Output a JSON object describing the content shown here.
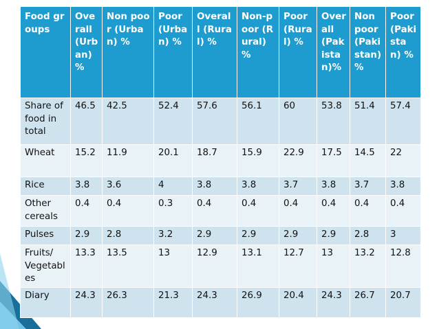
{
  "table": {
    "headers": [
      "Food groups",
      "Overall (Urban) %",
      "Non poor (Urban) %",
      "Poor (Urban) %",
      "Overall (Rural) %",
      "Non-poor (Rural) %",
      "Poor (Rural) %",
      "Overall (Pakistan)%",
      "Non poor (Pakistan) %",
      "Poor (Pakistan) %"
    ],
    "rows": [
      [
        "Share of food in total",
        "46.5",
        "42.5",
        "52.4",
        "57.6",
        "56.1",
        "60",
        "53.8",
        "51.4",
        "57.4"
      ],
      [
        "Wheat",
        "15.2",
        "11.9",
        "20.1",
        "18.7",
        "15.9",
        "22.9",
        "17.5",
        "14.5",
        "22"
      ],
      [
        "Rice",
        "3.8",
        "3.6",
        "4",
        "3.8",
        "3.8",
        "3.7",
        "3.8",
        "3.7",
        "3.8"
      ],
      [
        "Other cereals",
        "0.4",
        "0.4",
        "0.3",
        "0.4",
        "0.4",
        "0.4",
        "0.4",
        "0.4",
        "0.4"
      ],
      [
        "Pulses",
        "2.9",
        "2.8",
        "3.2",
        "2.9",
        "2.9",
        "2.9",
        "2.9",
        "2.8",
        "3"
      ],
      [
        "Fruits/ Vegetables",
        "13.3",
        "13.5",
        "13",
        "12.9",
        "13.1",
        "12.7",
        "13",
        "13.2",
        "12.8"
      ],
      [
        "Diary",
        "24.3",
        "26.3",
        "21.3",
        "24.3",
        "26.9",
        "20.4",
        "24.3",
        "26.7",
        "20.7"
      ]
    ]
  },
  "colors": {
    "header_bg": "#1f9ccf",
    "row_dark": "#cfe3ee",
    "row_light": "#e8f2f7",
    "corner_dark": "#1a6f9a",
    "corner_light": "#6fc3e6"
  },
  "decorations": [
    "corner-shape"
  ]
}
